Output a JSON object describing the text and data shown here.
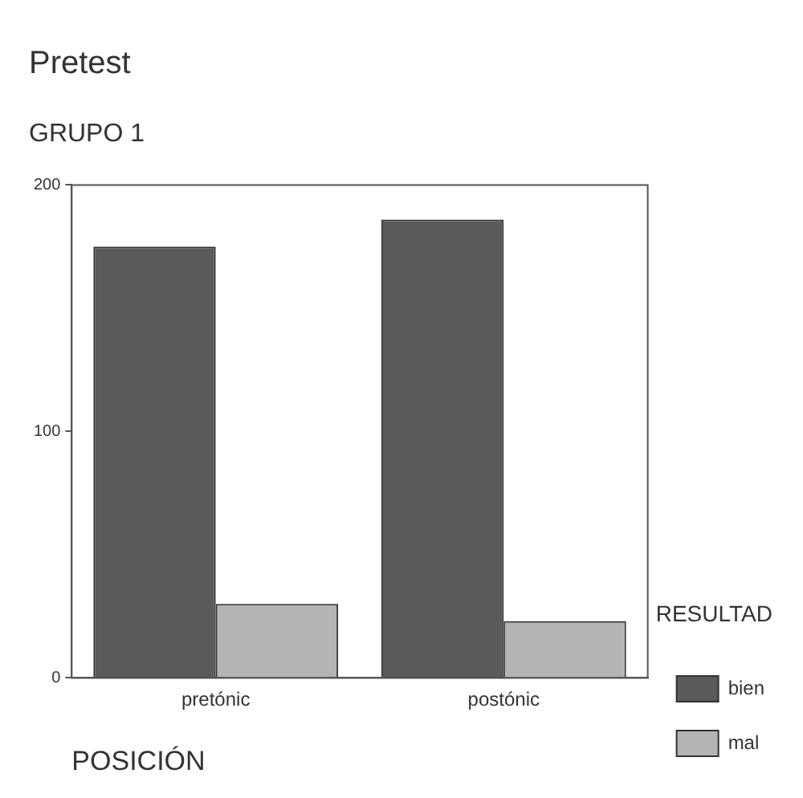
{
  "chart_data": {
    "type": "bar",
    "title": "Pretest",
    "subtitle": "GRUPO 1",
    "xlabel": "POSICIÓN",
    "legend_title": "RESULTAD",
    "categories": [
      "pretónic",
      "postónic"
    ],
    "series": [
      {
        "name": "bien",
        "color": "#5a5a5a",
        "values": [
          175,
          186
        ]
      },
      {
        "name": "mal",
        "color": "#b4b4b4",
        "values": [
          30,
          23
        ]
      }
    ],
    "ylim": [
      0,
      200
    ],
    "yticks": [
      0,
      100,
      200
    ],
    "grid": false,
    "legend": "right"
  }
}
